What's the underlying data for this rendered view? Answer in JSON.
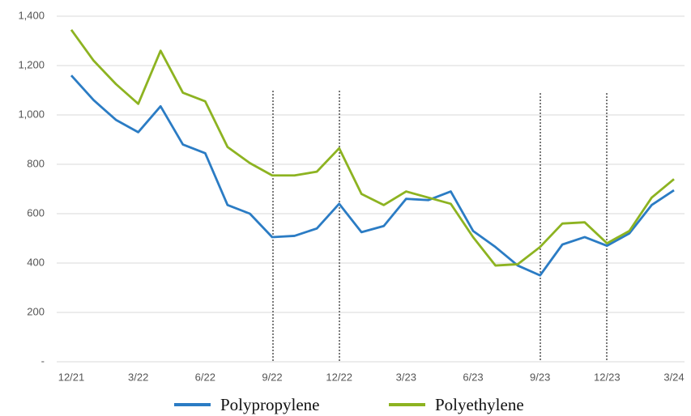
{
  "chart_data": {
    "type": "line",
    "categories": [
      "12/21",
      null,
      null,
      "3/22",
      null,
      null,
      "6/22",
      null,
      null,
      "9/22",
      null,
      null,
      "12/22",
      null,
      null,
      "3/23",
      null,
      null,
      "6/23",
      null,
      null,
      "9/23",
      null,
      null,
      "12/23",
      null,
      null,
      "3/24"
    ],
    "series": [
      {
        "name": "Polypropylene",
        "color": "#2b7cc4",
        "values": [
          1160,
          1060,
          980,
          930,
          1035,
          880,
          845,
          635,
          600,
          505,
          510,
          540,
          640,
          525,
          550,
          660,
          655,
          690,
          530,
          465,
          390,
          350,
          475,
          505,
          470,
          520,
          635,
          695
        ]
      },
      {
        "name": "Polyethylene",
        "color": "#8db321",
        "values": [
          1345,
          1220,
          1125,
          1045,
          1260,
          1090,
          1055,
          870,
          805,
          755,
          755,
          770,
          865,
          680,
          635,
          690,
          665,
          640,
          505,
          390,
          395,
          465,
          560,
          565,
          480,
          530,
          665,
          740
        ]
      }
    ],
    "ylim": [
      0,
      1400
    ],
    "yticks": [
      {
        "value": 0,
        "label": "-"
      },
      200,
      400,
      600,
      800,
      {
        "value": 1000,
        "label": "1,000"
      },
      {
        "value": 1200,
        "label": "1,200"
      },
      {
        "value": 1400,
        "label": "1,400"
      }
    ],
    "grid": true,
    "legend": "bottom"
  }
}
